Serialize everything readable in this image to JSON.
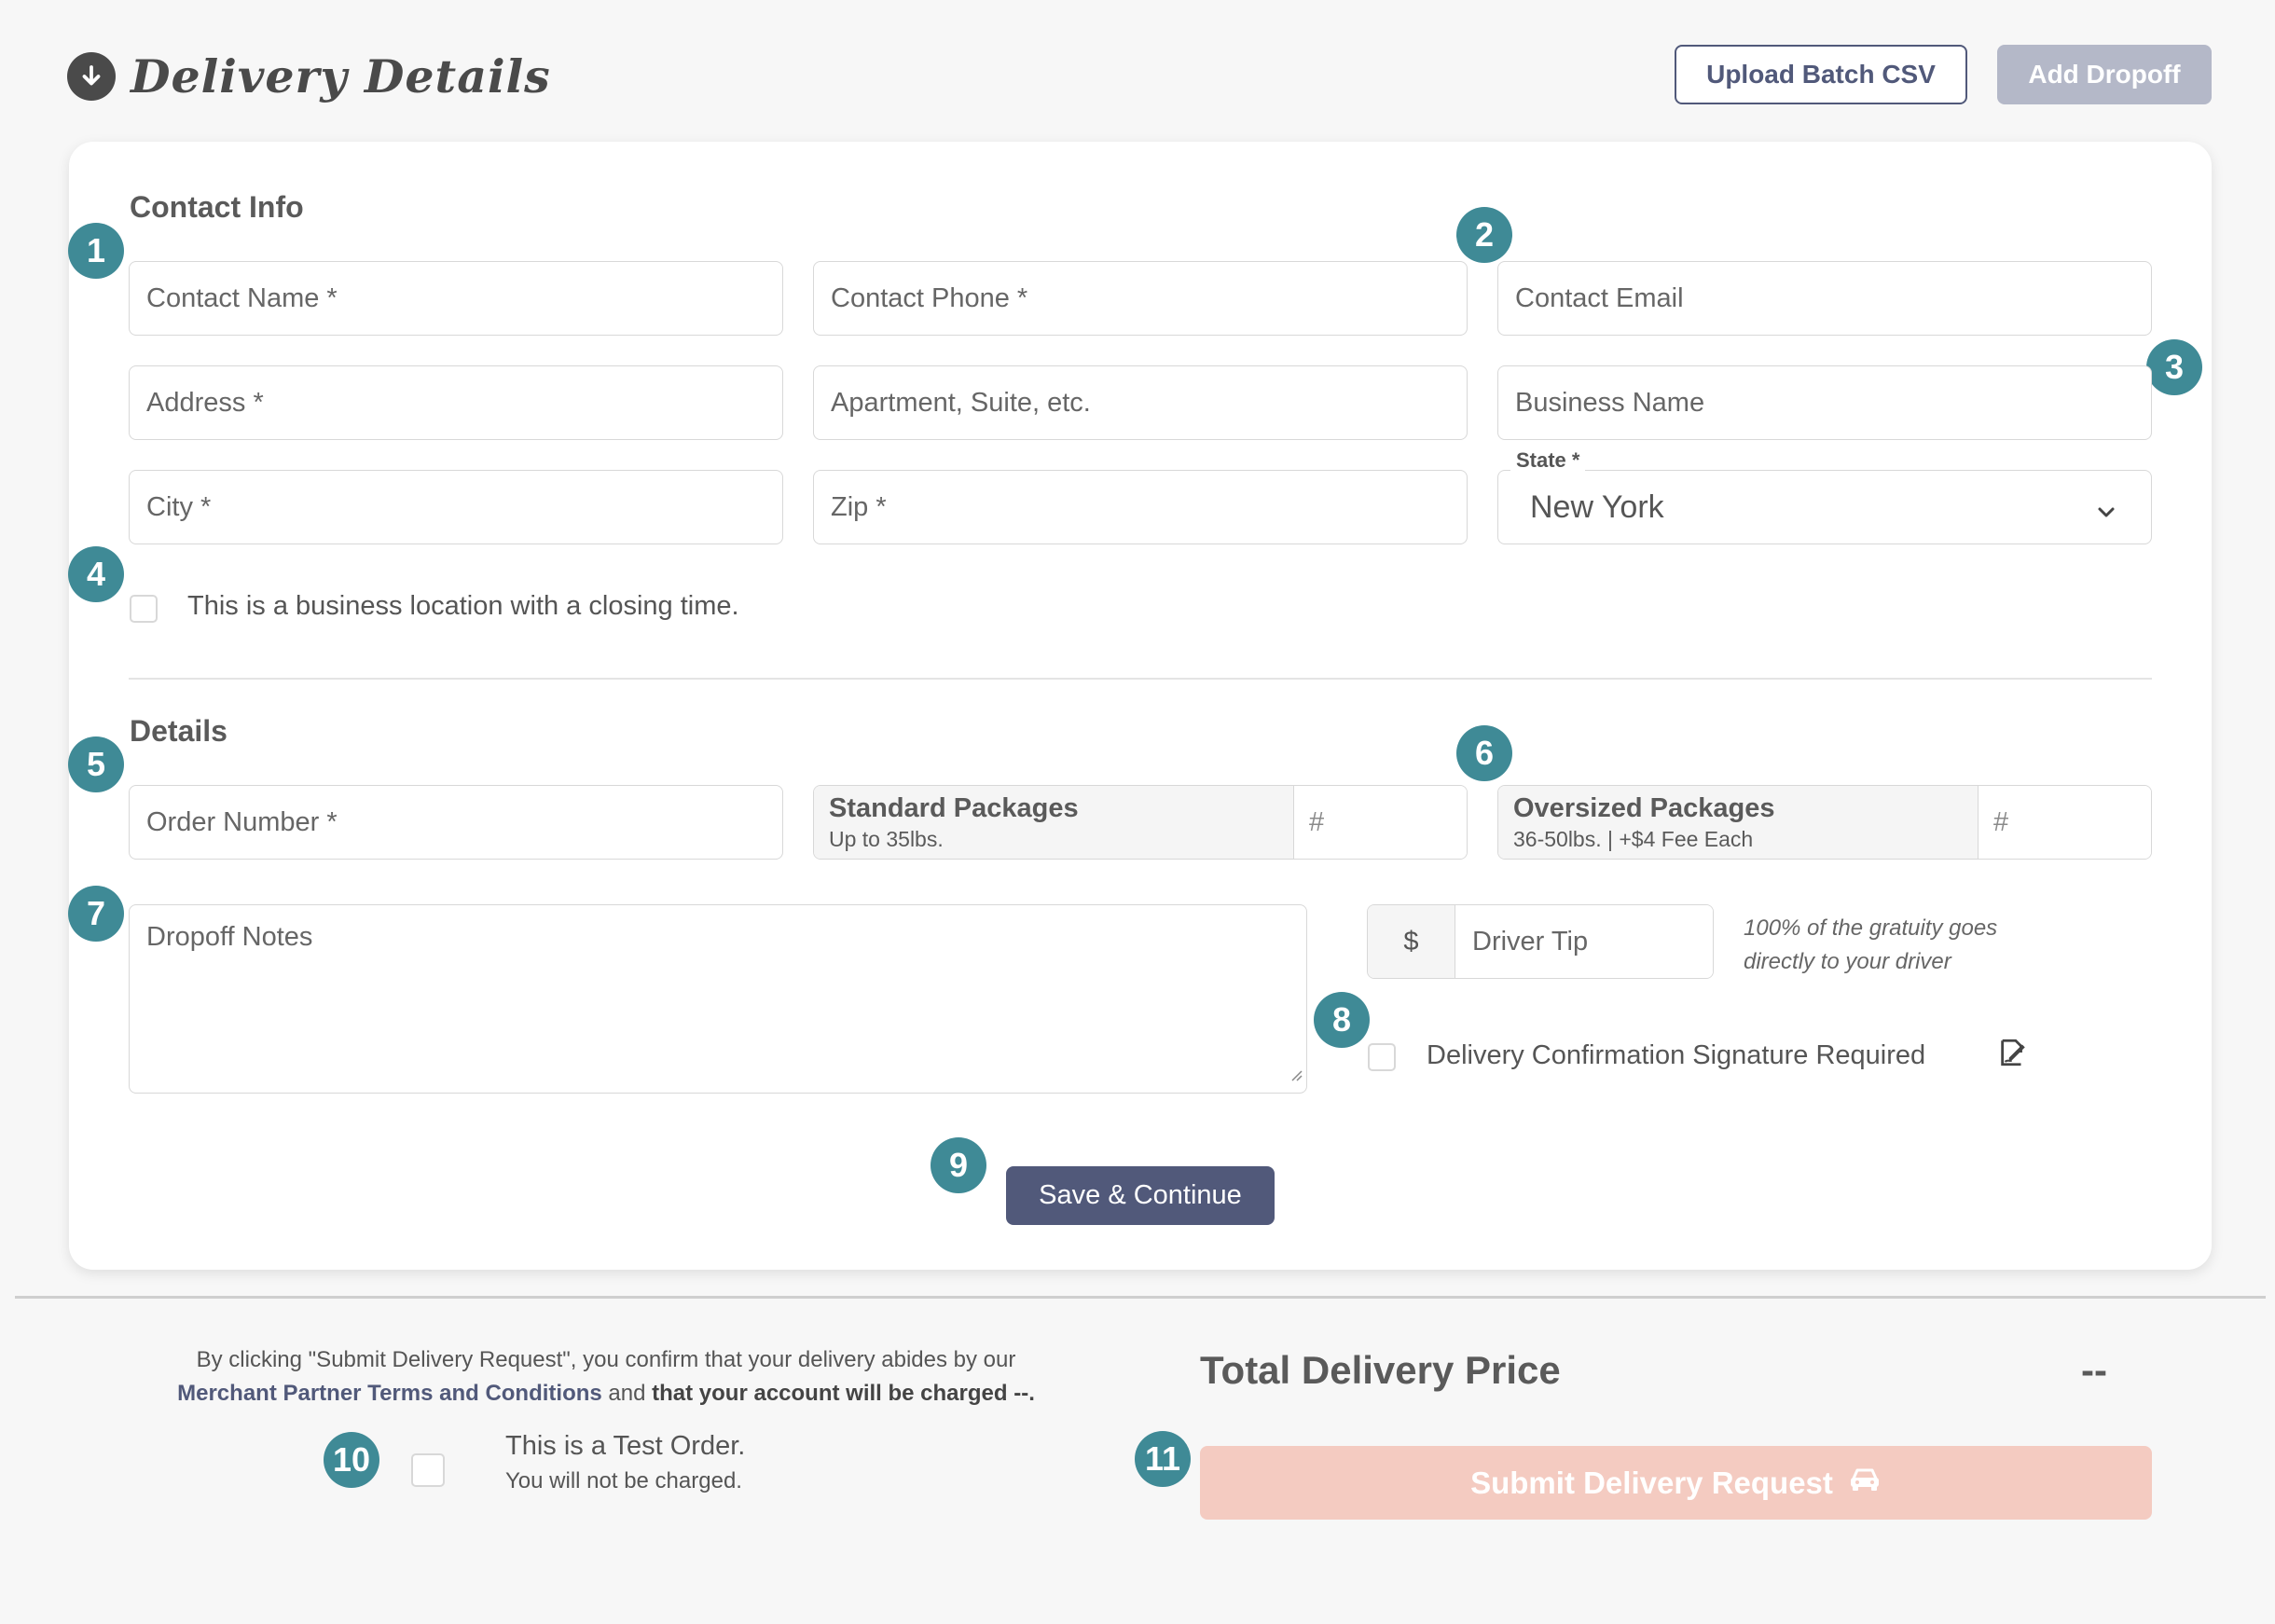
{
  "header": {
    "title": "Delivery Details",
    "upload_label": "Upload Batch CSV",
    "add_dropoff_label": "Add Dropoff"
  },
  "contact": {
    "section_title": "Contact Info",
    "name_placeholder": "Contact Name *",
    "phone_placeholder": "Contact Phone *",
    "email_placeholder": "Contact Email",
    "address_placeholder": "Address *",
    "apt_placeholder": "Apartment, Suite, etc.",
    "business_placeholder": "Business Name",
    "city_placeholder": "City *",
    "zip_placeholder": "Zip *",
    "state_label": "State *",
    "state_value": "New York",
    "closing_time_label": "This is a business location with a closing time."
  },
  "details": {
    "section_title": "Details",
    "order_placeholder": "Order Number *",
    "standard_title": "Standard Packages",
    "standard_sub": "Up to 35lbs.",
    "standard_qty_placeholder": "#",
    "oversized_title": "Oversized Packages",
    "oversized_sub": "36-50lbs. | +$4 Fee Each",
    "oversized_qty_placeholder": "#",
    "notes_placeholder": "Dropoff Notes",
    "tip_prefix": "$",
    "tip_placeholder": "Driver Tip",
    "tip_note_line1": "100% of the gratuity goes",
    "tip_note_line2": "directly to your driver",
    "signature_label": "Delivery Confirmation Signature Required",
    "save_label": "Save & Continue"
  },
  "badges": [
    "1",
    "2",
    "3",
    "4",
    "5",
    "6",
    "7",
    "8",
    "9",
    "10",
    "11"
  ],
  "footer": {
    "legal_prefix": "By clicking \"Submit Delivery Request\", you confirm that your delivery abides by our",
    "legal_link": "Merchant Partner Terms and Conditions",
    "legal_and": "and",
    "legal_bold": "that your account will be charged --.",
    "test_order_label": "This is a Test Order.",
    "test_order_sub": "You will not be charged.",
    "total_label": "Total Delivery Price",
    "total_value": "--",
    "submit_label": "Submit Delivery Request"
  },
  "colors": {
    "brand": "#51597a",
    "badge": "#3f8a96",
    "submit_disabled": "#f4cbc1"
  },
  "icons": {
    "header": "arrow-down-circle-icon",
    "select": "chevron-down-icon",
    "signature": "signature-icon",
    "submit": "car-icon"
  }
}
